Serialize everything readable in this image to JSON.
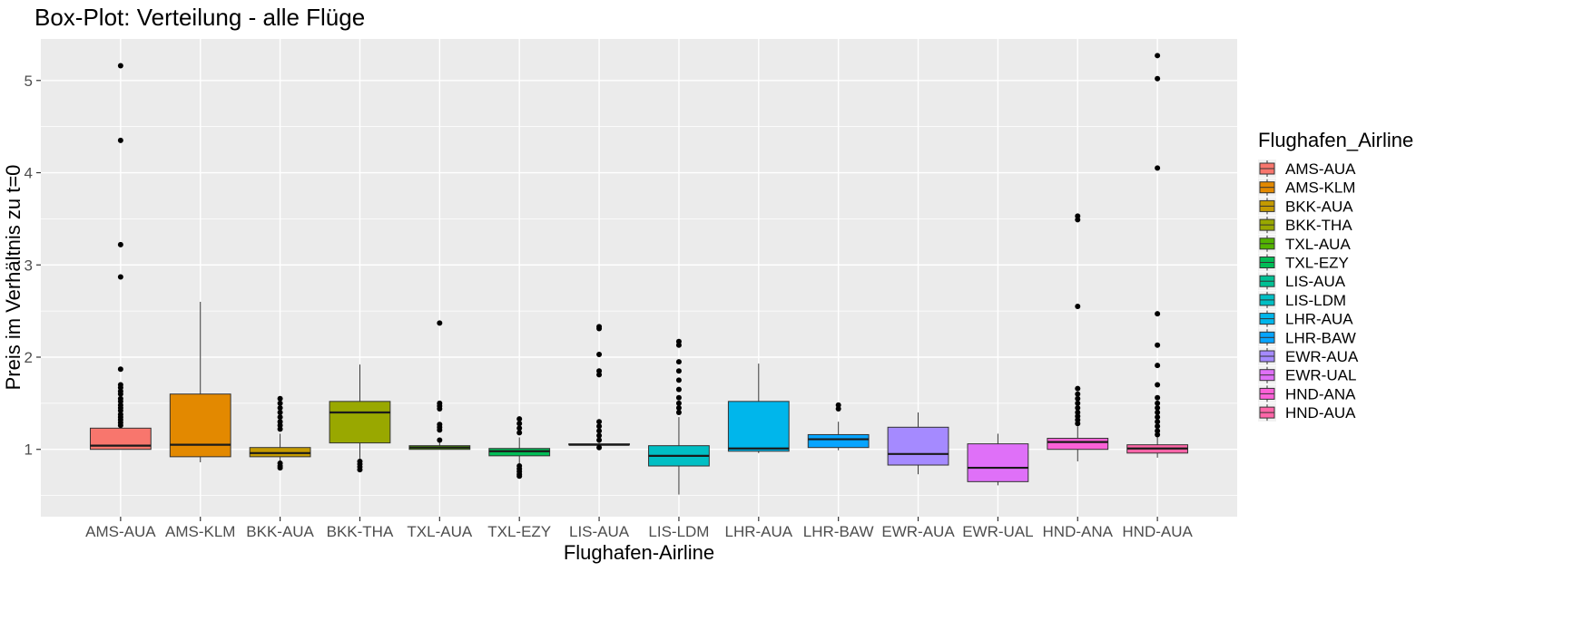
{
  "chart_data": {
    "type": "boxplot",
    "title": "Box-Plot: Verteilung - alle Flüge",
    "xlabel": "Flughafen-Airline",
    "ylabel": "Preis im Verhältnis zu t=0",
    "ylim": [
      0.27,
      5.45
    ],
    "yticks": [
      "1",
      "2",
      "3",
      "4",
      "5"
    ],
    "grid": true,
    "legend_title": "Flughafen_Airline",
    "legend_position": "right",
    "categories": [
      "AMS-AUA",
      "AMS-KLM",
      "BKK-AUA",
      "BKK-THA",
      "TXL-AUA",
      "TXL-EZY",
      "LIS-AUA",
      "LIS-LDM",
      "LHR-AUA",
      "LHR-BAW",
      "EWR-AUA",
      "EWR-UAL",
      "HND-ANA",
      "HND-AUA"
    ],
    "colors": [
      "#F8766D",
      "#E38900",
      "#C49A00",
      "#99A800",
      "#53B400",
      "#00BC56",
      "#00C094",
      "#00BFC4",
      "#00B6EB",
      "#06A4FF",
      "#A58AFF",
      "#DF70F8",
      "#FB61D7",
      "#FF66A8"
    ],
    "boxes": [
      {
        "q1": 1.0,
        "median": 1.04,
        "q3": 1.23,
        "whisker_low": 1.0,
        "whisker_high": 1.57,
        "outliers": [
          5.16,
          4.35,
          3.22,
          2.87,
          1.87,
          1.7,
          1.67,
          1.63,
          1.6,
          1.55,
          1.52,
          1.48,
          1.45,
          1.42,
          1.38,
          1.35,
          1.32,
          1.29,
          1.26
        ]
      },
      {
        "q1": 0.92,
        "median": 1.05,
        "q3": 1.6,
        "whisker_low": 0.86,
        "whisker_high": 2.6,
        "outliers": []
      },
      {
        "q1": 0.92,
        "median": 0.96,
        "q3": 1.02,
        "whisker_low": 0.8,
        "whisker_high": 1.17,
        "outliers": [
          1.55,
          1.5,
          1.45,
          1.4,
          1.35,
          1.3,
          1.26,
          1.22,
          0.85,
          0.82,
          0.8
        ]
      },
      {
        "q1": 1.07,
        "median": 1.4,
        "q3": 1.52,
        "whisker_low": 0.9,
        "whisker_high": 1.92,
        "outliers": [
          0.87,
          0.84,
          0.81,
          0.78
        ]
      },
      {
        "q1": 1.0,
        "median": 1.02,
        "q3": 1.04,
        "whisker_low": 1.0,
        "whisker_high": 1.09,
        "outliers": [
          2.37,
          1.5,
          1.47,
          1.44,
          1.27,
          1.24,
          1.21,
          1.1
        ]
      },
      {
        "q1": 0.93,
        "median": 0.98,
        "q3": 1.01,
        "whisker_low": 0.85,
        "whisker_high": 1.13,
        "outliers": [
          1.33,
          1.28,
          1.23,
          1.18,
          0.82,
          0.79,
          0.76,
          0.73,
          0.71
        ]
      },
      {
        "q1": 1.05,
        "median": 1.05,
        "q3": 1.06,
        "whisker_low": 1.04,
        "whisker_high": 1.07,
        "outliers": [
          2.33,
          2.31,
          2.03,
          1.85,
          1.81,
          1.3,
          1.25,
          1.2,
          1.15,
          1.1,
          1.02
        ]
      },
      {
        "q1": 0.82,
        "median": 0.93,
        "q3": 1.04,
        "whisker_low": 0.51,
        "whisker_high": 1.35,
        "outliers": [
          2.17,
          2.13,
          1.95,
          1.85,
          1.75,
          1.65,
          1.56,
          1.5,
          1.45,
          1.4
        ]
      },
      {
        "q1": 0.98,
        "median": 1.01,
        "q3": 1.52,
        "whisker_low": 0.96,
        "whisker_high": 1.93,
        "outliers": []
      },
      {
        "q1": 1.02,
        "median": 1.11,
        "q3": 1.16,
        "whisker_low": 0.99,
        "whisker_high": 1.3,
        "outliers": [
          1.48,
          1.44
        ]
      },
      {
        "q1": 0.83,
        "median": 0.95,
        "q3": 1.24,
        "whisker_low": 0.73,
        "whisker_high": 1.4,
        "outliers": []
      },
      {
        "q1": 0.65,
        "median": 0.8,
        "q3": 1.06,
        "whisker_low": 0.61,
        "whisker_high": 1.17,
        "outliers": []
      },
      {
        "q1": 1.0,
        "median": 1.08,
        "q3": 1.12,
        "whisker_low": 0.87,
        "whisker_high": 1.25,
        "outliers": [
          3.53,
          3.49,
          2.55,
          1.66,
          1.6,
          1.55,
          1.5,
          1.45,
          1.4,
          1.36,
          1.32,
          1.28
        ]
      },
      {
        "q1": 0.96,
        "median": 1.01,
        "q3": 1.05,
        "whisker_low": 0.91,
        "whisker_high": 1.13,
        "outliers": [
          5.27,
          5.02,
          4.05,
          2.47,
          2.13,
          1.91,
          1.7,
          1.56,
          1.5,
          1.45,
          1.4,
          1.35,
          1.3,
          1.25,
          1.2,
          1.16
        ]
      }
    ]
  }
}
